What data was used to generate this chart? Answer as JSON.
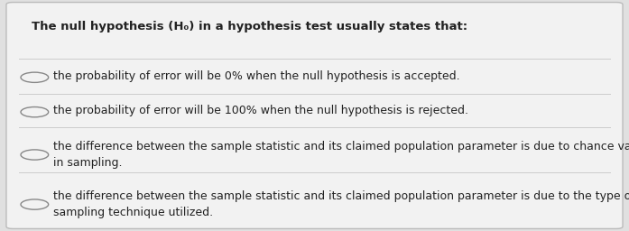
{
  "title": "The null hypothesis (H₀) in a hypothesis test usually states that:",
  "options": [
    "the probability of error will be 0% when the null hypothesis is accepted.",
    "the probability of error will be 100% when the null hypothesis is rejected.",
    "the difference between the sample statistic and its claimed population parameter is due to chance variation\nin sampling.",
    "the difference between the sample statistic and its claimed population parameter is due to the type of\nsampling technique utilized."
  ],
  "bg_color": "#e0e0e0",
  "card_color": "#f2f2f2",
  "border_color": "#bbbbbb",
  "title_fontsize": 9.5,
  "option_fontsize": 9.0,
  "text_color": "#222222",
  "circle_color": "#888888",
  "divider_color": "#cccccc"
}
